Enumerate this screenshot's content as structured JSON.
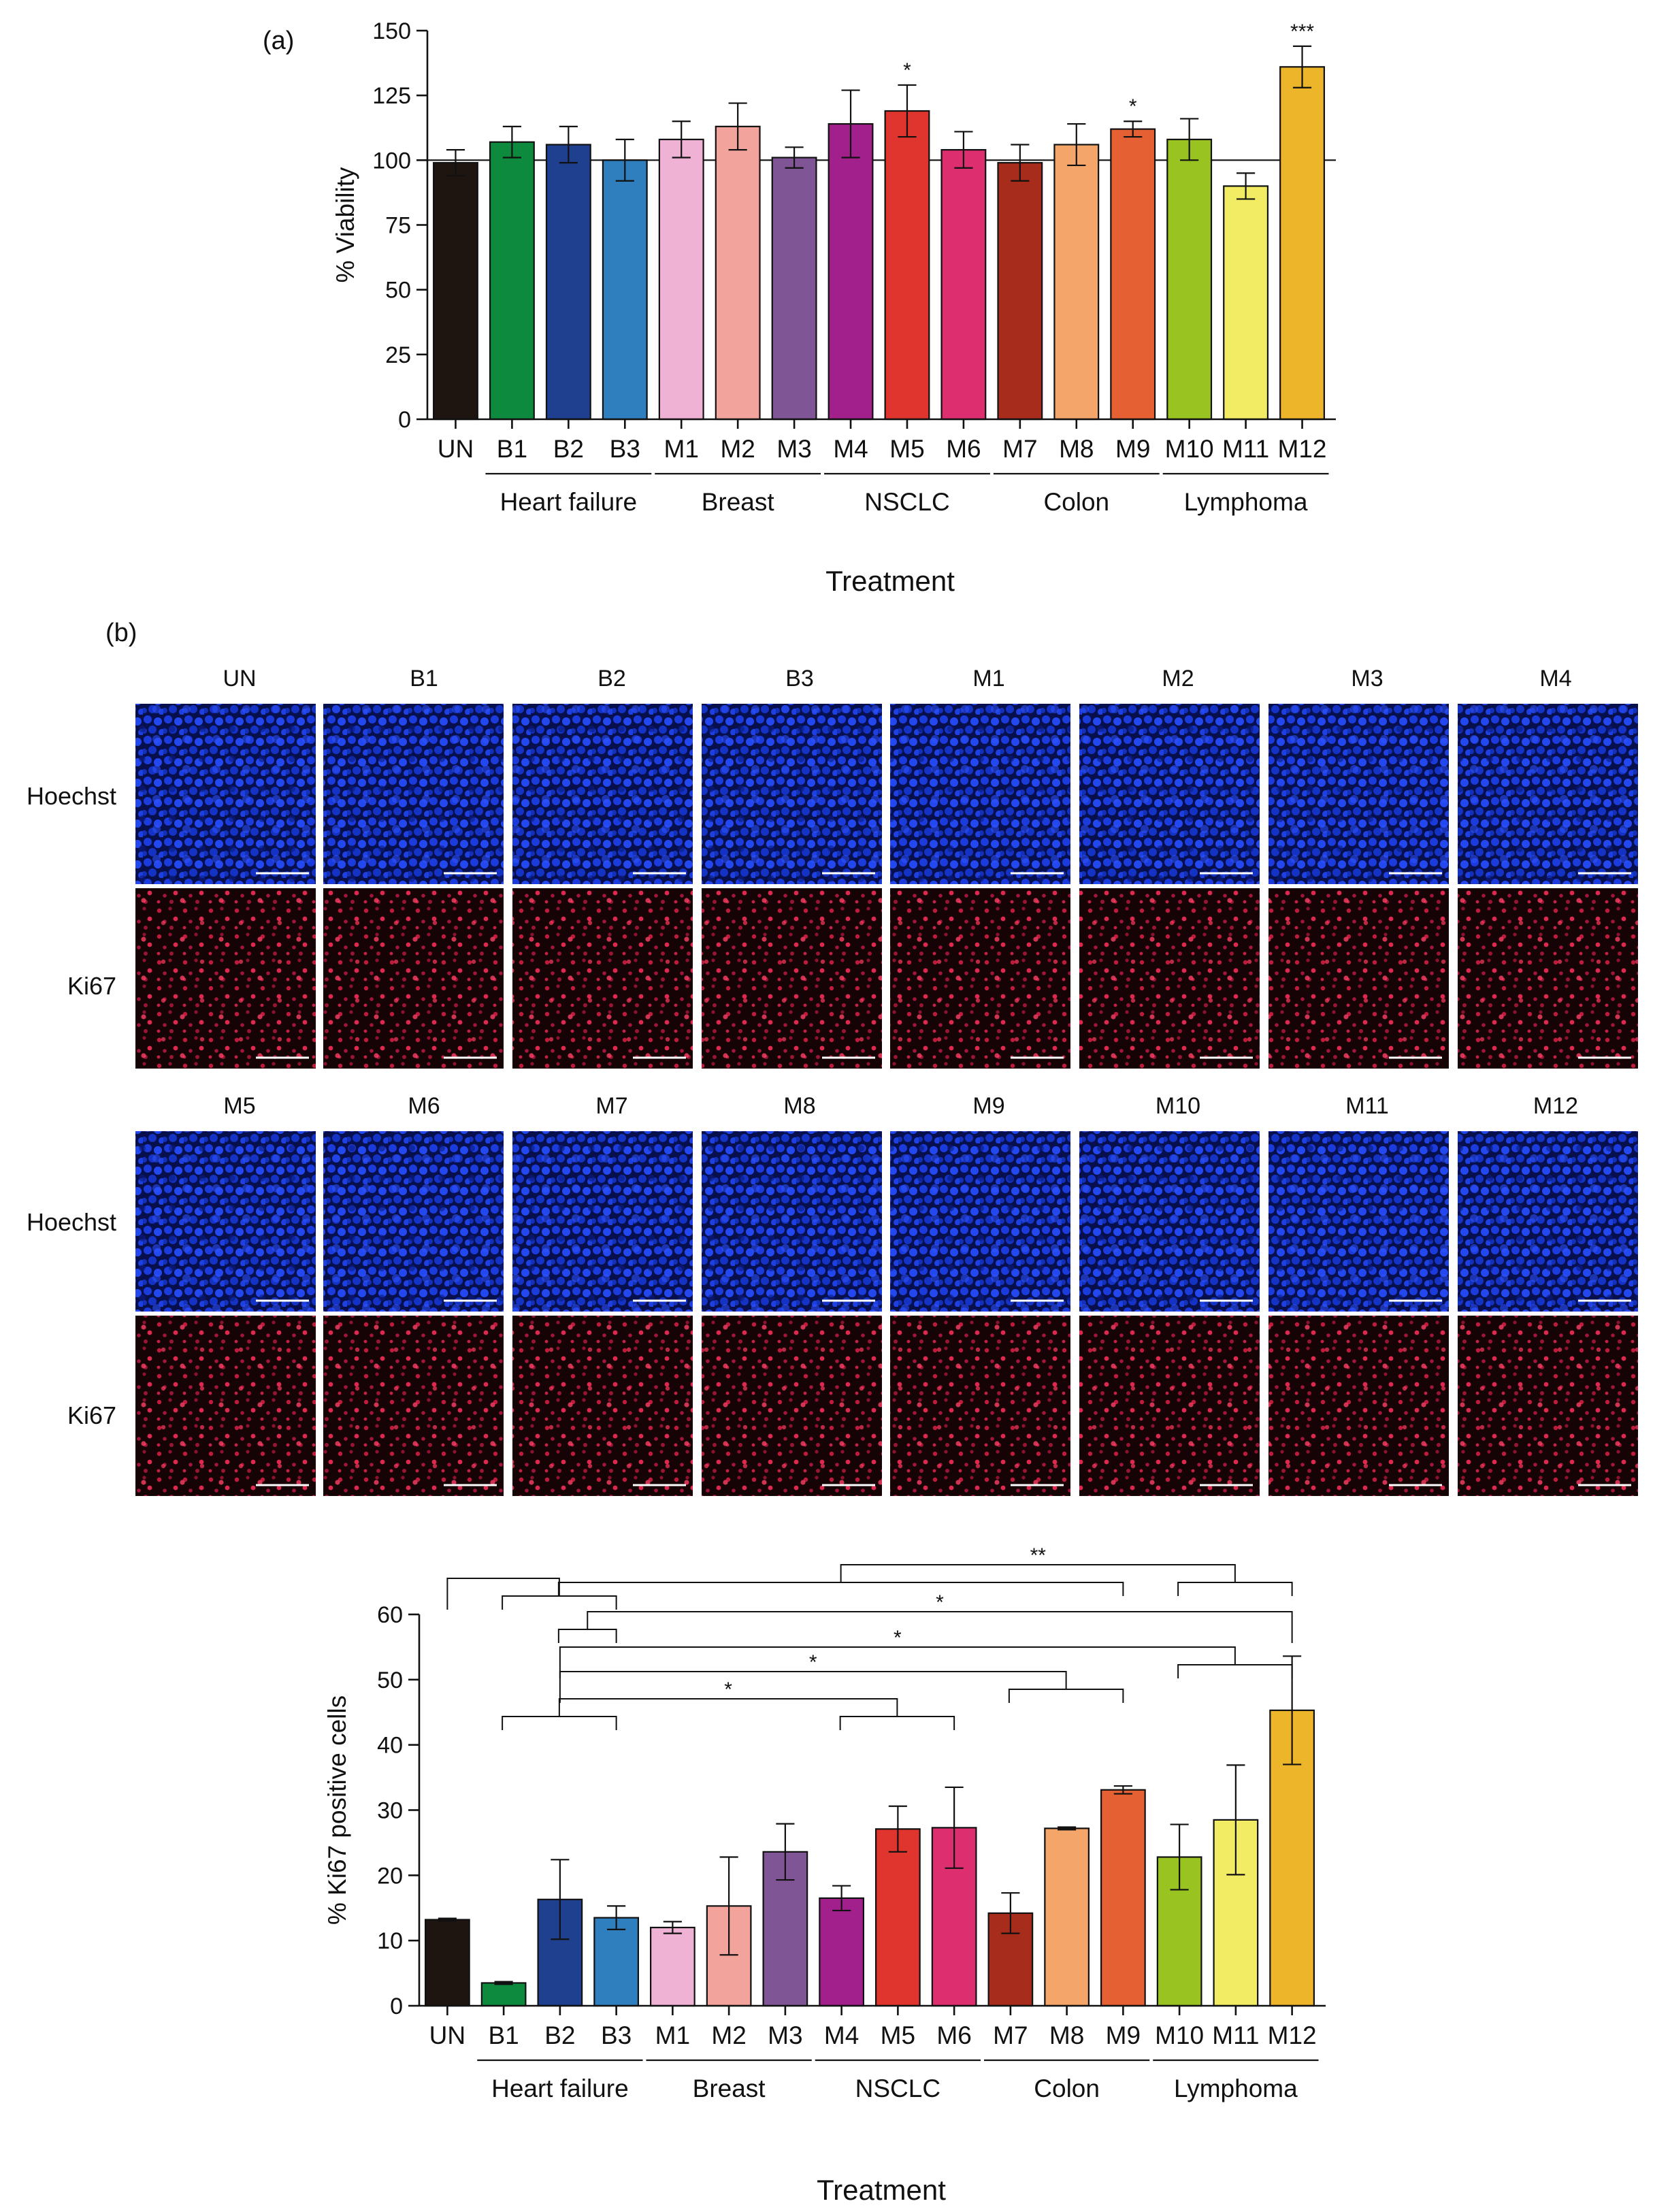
{
  "panel_a": {
    "label": "(a)",
    "chart_data": {
      "type": "bar",
      "title": "",
      "ylabel": "% Viability",
      "xlabel": "Treatment",
      "ylim": [
        0,
        150
      ],
      "yticks": [
        "0",
        "25",
        "50",
        "75",
        "100",
        "125",
        "150"
      ],
      "reference_line": 100,
      "categories": [
        "UN",
        "B1",
        "B2",
        "B3",
        "M1",
        "M2",
        "M3",
        "M4",
        "M5",
        "M6",
        "M7",
        "M8",
        "M9",
        "M10",
        "M11",
        "M12"
      ],
      "values": [
        99,
        107,
        106,
        100,
        108,
        113,
        101,
        114,
        119,
        104,
        99,
        106,
        112,
        108,
        90,
        136
      ],
      "errors": [
        5,
        6,
        7,
        8,
        7,
        9,
        4,
        13,
        10,
        7,
        7,
        8,
        3,
        8,
        5,
        8
      ],
      "colors": [
        "#1e1510",
        "#0d8a3e",
        "#1f3f8f",
        "#2f7fbe",
        "#efb2d4",
        "#f2a49c",
        "#7f5595",
        "#a2208c",
        "#e0342e",
        "#dd2e6f",
        "#a72c1c",
        "#f4a66a",
        "#e56032",
        "#99c320",
        "#f1ec64",
        "#edb52a"
      ],
      "significance": [
        "",
        "",
        "",
        "",
        "",
        "",
        "",
        "",
        "*",
        "",
        "",
        "",
        "*",
        "",
        "",
        "***"
      ],
      "groups": [
        {
          "label": "Heart failure",
          "start": 1,
          "end": 3
        },
        {
          "label": "Breast",
          "start": 4,
          "end": 6
        },
        {
          "label": "NSCLC",
          "start": 7,
          "end": 9
        },
        {
          "label": "Colon",
          "start": 10,
          "end": 12
        },
        {
          "label": "Lymphoma",
          "start": 13,
          "end": 15
        }
      ]
    }
  },
  "panel_b": {
    "label": "(b)",
    "rows": [
      {
        "labels": [
          "UN",
          "B1",
          "B2",
          "B3",
          "M1",
          "M2",
          "M3",
          "M4"
        ],
        "stains": [
          "Hoechst",
          "Ki67"
        ]
      },
      {
        "labels": [
          "M5",
          "M6",
          "M7",
          "M8",
          "M9",
          "M10",
          "M11",
          "M12"
        ],
        "stains": [
          "Hoechst",
          "Ki67"
        ]
      }
    ],
    "chart_data": {
      "type": "bar",
      "title": "",
      "ylabel": "% Ki67 positive cells",
      "xlabel": "Treatment",
      "ylim": [
        0,
        60
      ],
      "yticks": [
        "0",
        "10",
        "20",
        "30",
        "40",
        "50",
        "60"
      ],
      "categories": [
        "UN",
        "B1",
        "B2",
        "B3",
        "M1",
        "M2",
        "M3",
        "M4",
        "M5",
        "M6",
        "M7",
        "M8",
        "M9",
        "M10",
        "M11",
        "M12"
      ],
      "values": [
        13.2,
        3.5,
        16.3,
        13.5,
        12.0,
        15.3,
        23.6,
        16.5,
        27.1,
        27.3,
        14.2,
        27.2,
        33.1,
        22.8,
        28.5,
        45.3
      ],
      "errors": [
        0.2,
        0.2,
        6.1,
        1.8,
        0.9,
        7.5,
        4.3,
        1.9,
        3.5,
        6.2,
        3.1,
        0.2,
        0.6,
        5.0,
        8.4,
        8.3
      ],
      "colors": [
        "#1e1510",
        "#0d8a3e",
        "#1f3f8f",
        "#2f7fbe",
        "#efb2d4",
        "#f2a49c",
        "#7f5595",
        "#a2208c",
        "#e0342e",
        "#dd2e6f",
        "#a72c1c",
        "#f4a66a",
        "#e56032",
        "#99c320",
        "#f1ec64",
        "#edb52a"
      ],
      "groups": [
        {
          "label": "Heart failure",
          "start": 1,
          "end": 3
        },
        {
          "label": "Breast",
          "start": 4,
          "end": 6
        },
        {
          "label": "NSCLC",
          "start": 7,
          "end": 9
        },
        {
          "label": "Colon",
          "start": 10,
          "end": 12
        },
        {
          "label": "Lymphoma",
          "start": 13,
          "end": 15
        }
      ],
      "comparisons": [
        {
          "from": [
            0,
            0
          ],
          "to": [
            1,
            3
          ],
          "label": ""
        },
        {
          "from": [
            2,
            12
          ],
          "to": [
            13,
            15
          ],
          "label": "**"
        },
        {
          "from": [
            2,
            3
          ],
          "to": [
            15,
            15
          ],
          "label": "*"
        },
        {
          "from": [
            2,
            2
          ],
          "to": [
            13,
            15
          ],
          "label": "*"
        },
        {
          "from": [
            2,
            2
          ],
          "to": [
            10,
            12
          ],
          "label": "*"
        },
        {
          "from": [
            1,
            3
          ],
          "to": [
            7,
            9
          ],
          "label": "*"
        }
      ]
    }
  }
}
